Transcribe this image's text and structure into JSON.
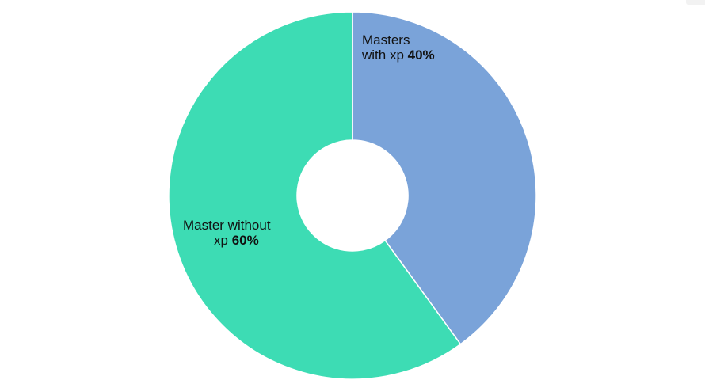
{
  "chart_data": {
    "type": "pie",
    "donut": true,
    "start_angle_deg": 0,
    "direction": "clockwise",
    "slice_border_color": "#ffffff",
    "slices": [
      {
        "label_lines": [
          "Masters",
          "with xp"
        ],
        "percent_label": "40%",
        "value": 40,
        "color": "#7aa3d9"
      },
      {
        "label_lines": [
          "Master without",
          "xp"
        ],
        "percent_label": "60%",
        "value": 60,
        "color": "#3ddcb4"
      }
    ]
  }
}
